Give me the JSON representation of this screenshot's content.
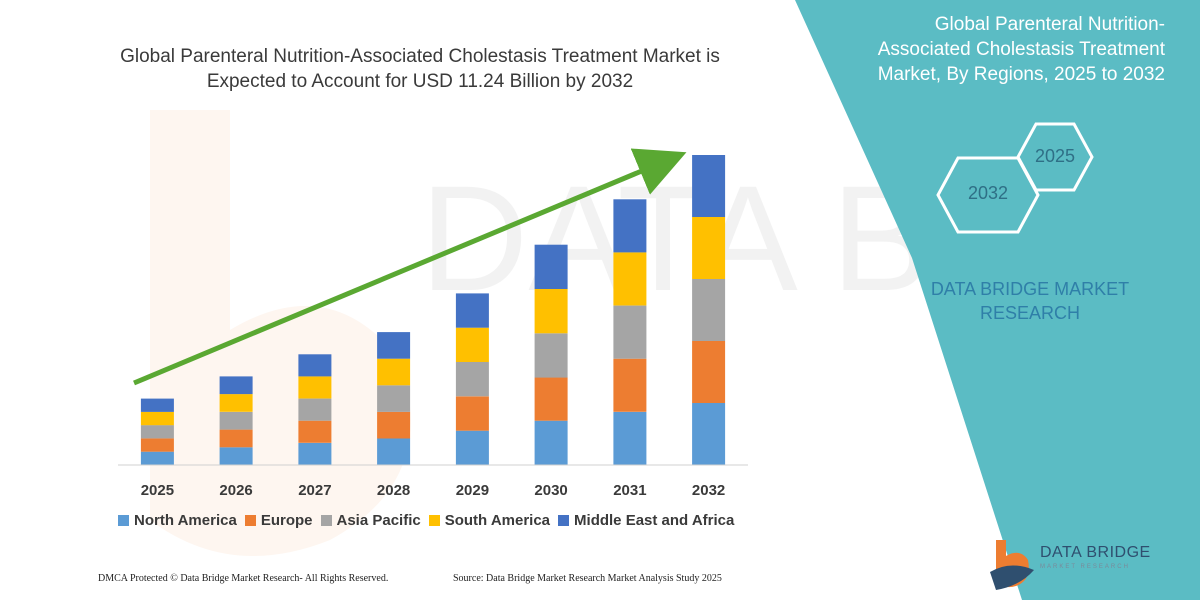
{
  "title": "Global Parenteral Nutrition-Associated Cholestasis Treatment Market is Expected to Account for USD 11.24 Billion by 2032",
  "side_panel": {
    "title": "Global Parenteral Nutrition-Associated Cholestasis Treatment Market, By Regions, 2025 to 2032",
    "hex_labels": [
      "2032",
      "2025"
    ],
    "brand": "DATA BRIDGE MARKET RESEARCH",
    "accent_color": "#5bbcc4"
  },
  "logo": {
    "name": "DATA BRIDGE",
    "tagline": "MARKET RESEARCH"
  },
  "footer": {
    "left": "DMCA Protected © Data Bridge Market Research- All Rights Reserved.",
    "right": "Source: Data Bridge Market Research Market Analysis Study 2025"
  },
  "chart_data": {
    "type": "bar",
    "stacked": true,
    "categories": [
      "2025",
      "2026",
      "2027",
      "2028",
      "2029",
      "2030",
      "2031",
      "2032"
    ],
    "series": [
      {
        "name": "North America",
        "color": "#5b9bd5",
        "values": [
          1.2,
          1.6,
          2.0,
          2.4,
          3.1,
          4.0,
          4.8,
          5.6
        ]
      },
      {
        "name": "Europe",
        "color": "#ed7d31",
        "values": [
          1.2,
          1.6,
          2.0,
          2.4,
          3.1,
          3.9,
          4.8,
          5.6
        ]
      },
      {
        "name": "Asia Pacific",
        "color": "#a5a5a5",
        "values": [
          1.2,
          1.6,
          2.0,
          2.4,
          3.1,
          4.0,
          4.8,
          5.6
        ]
      },
      {
        "name": "South America",
        "color": "#ffc000",
        "values": [
          1.2,
          1.6,
          2.0,
          2.4,
          3.1,
          4.0,
          4.8,
          5.6
        ]
      },
      {
        "name": "Middle East and Africa",
        "color": "#4472c4",
        "values": [
          1.2,
          1.6,
          2.0,
          2.4,
          3.1,
          4.0,
          4.8,
          5.6
        ]
      }
    ],
    "ylim": [
      0,
      28
    ],
    "legend_position": "bottom",
    "grid": false,
    "trend_arrow_color": "#5aa832"
  }
}
